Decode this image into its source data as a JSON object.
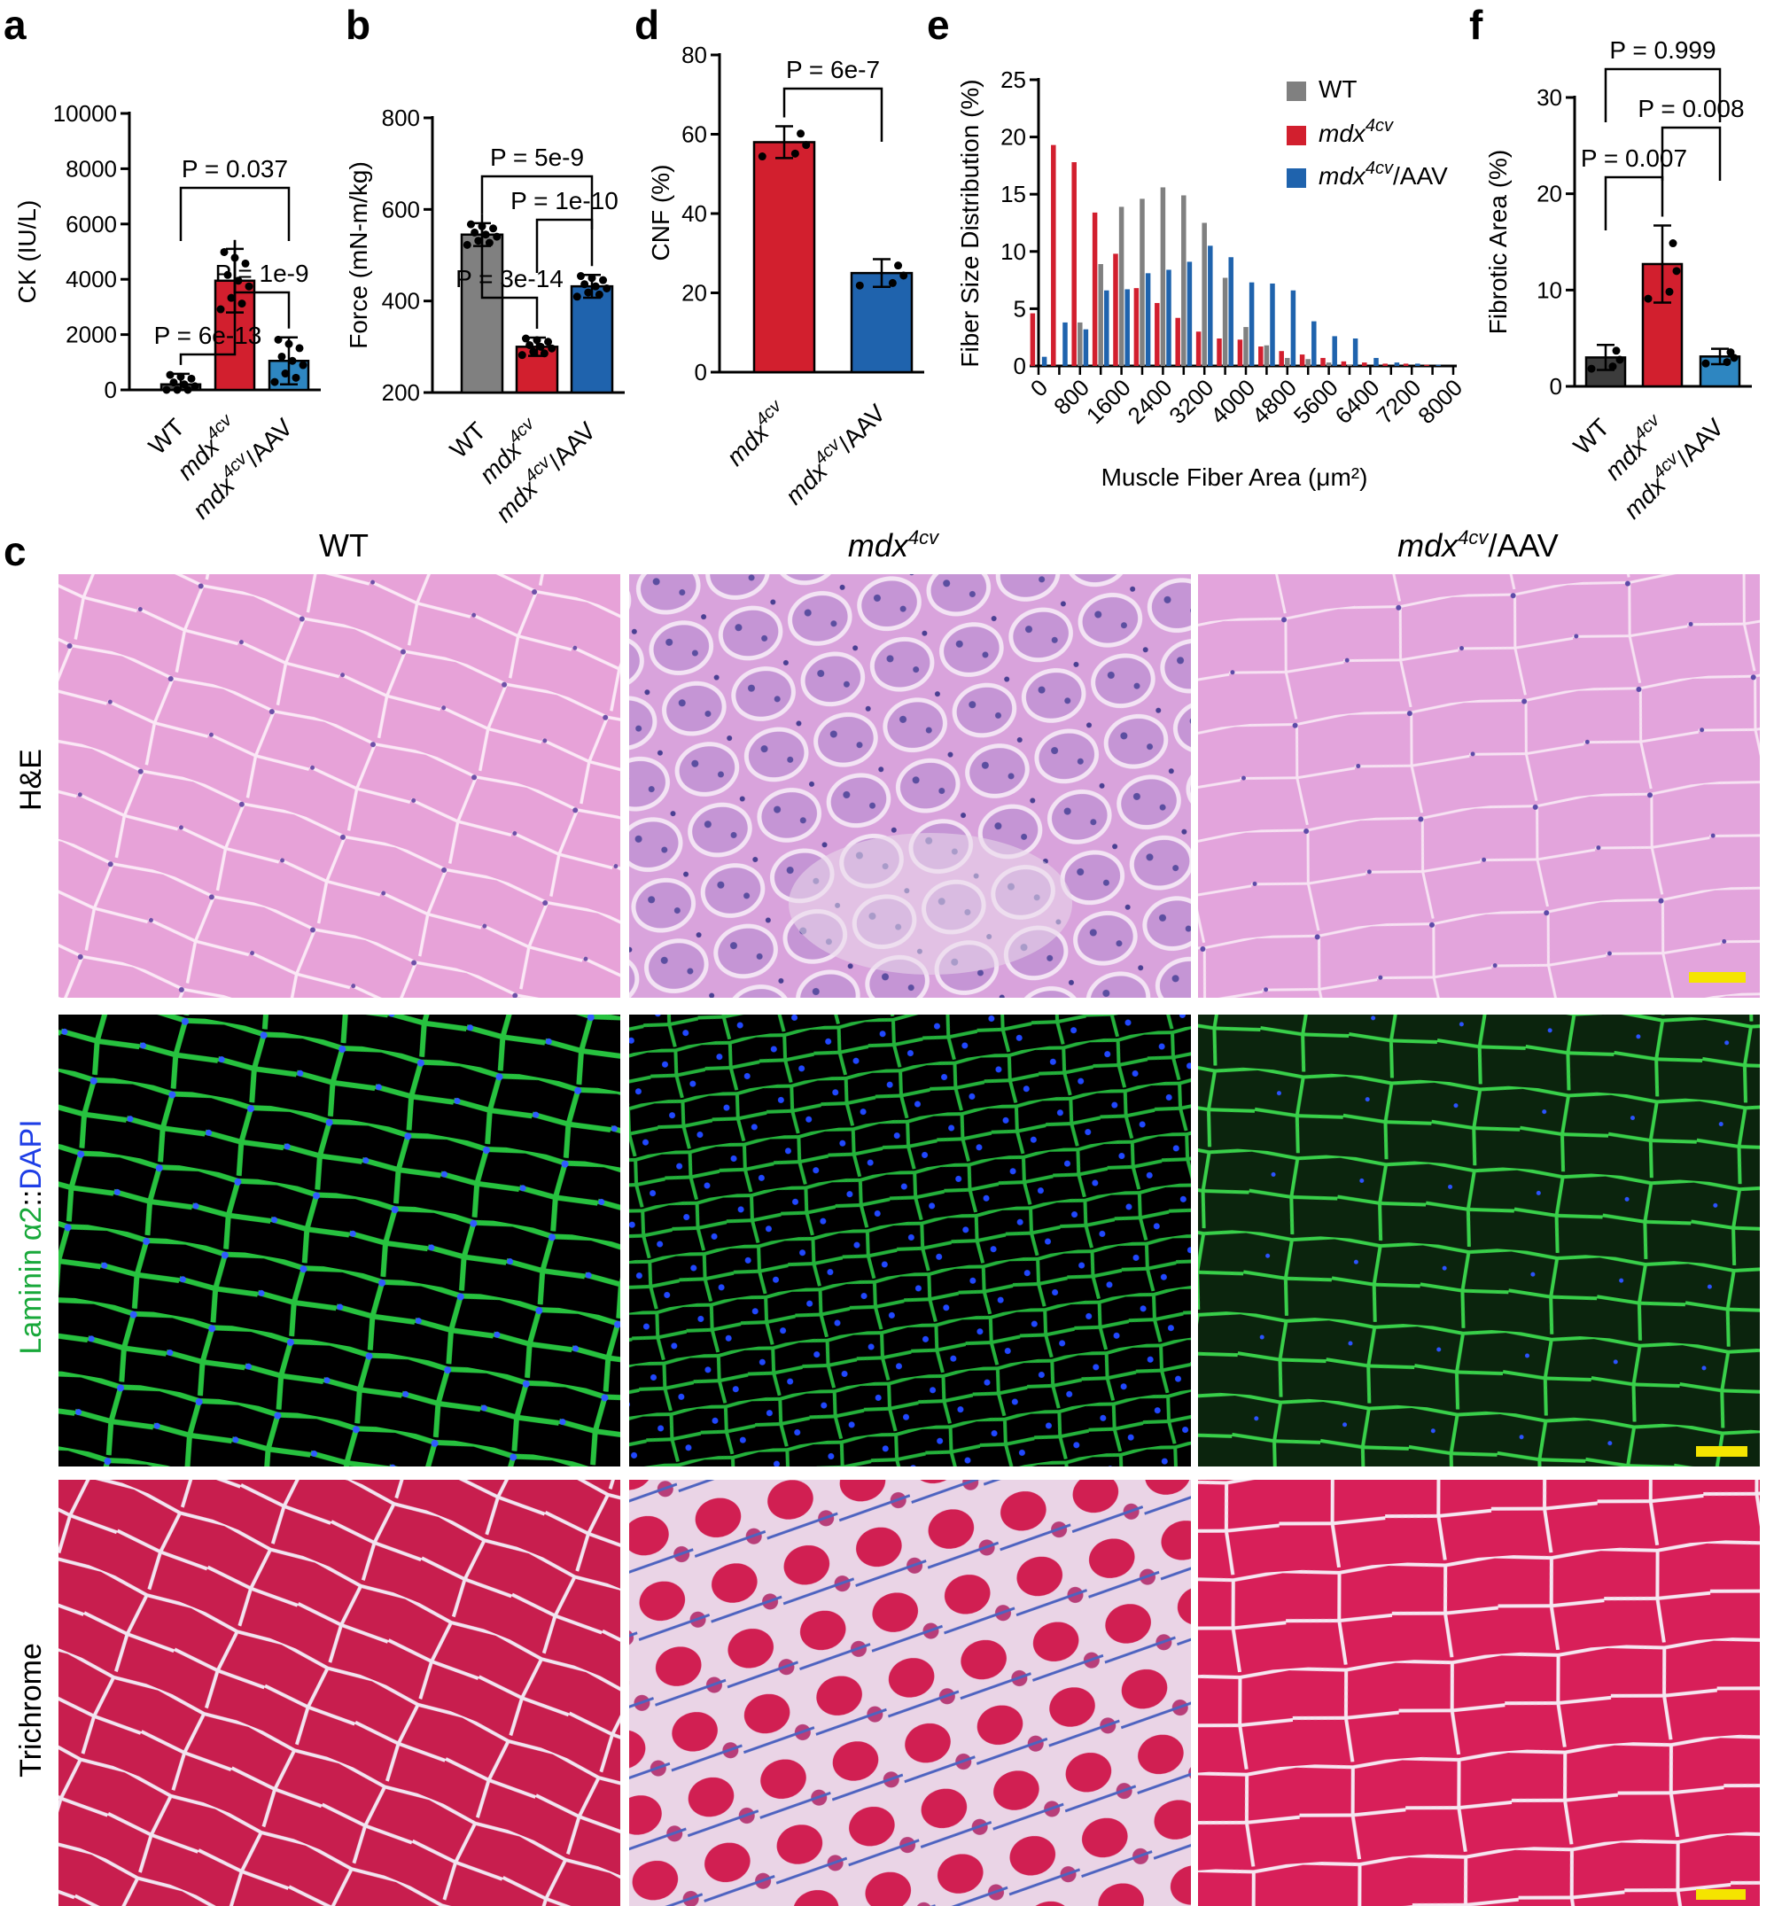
{
  "panel_letters": [
    "a",
    "b",
    "d",
    "e",
    "f",
    "c"
  ],
  "group_labels": {
    "wt": "WT",
    "mdx": "mdx",
    "sup": "4cv",
    "aav": "/AAV"
  },
  "colors": {
    "wt": "#808080",
    "wt_dark": "#4d4d4d",
    "mdx": "#d21f2e",
    "aav": "#1f63ad",
    "aav_light": "#2e86c1",
    "scalebar": "#f5e400"
  },
  "chart_data": [
    {
      "id": "a",
      "type": "bar",
      "ylabel": "CK (IU/L)",
      "ylim": [
        0,
        10000
      ],
      "yticks": [
        "0",
        "2000",
        "4000",
        "6000",
        "8000",
        "10000"
      ],
      "categories": [
        "WT",
        "mdx4cv",
        "mdx4cv/AAV"
      ],
      "values": [
        200,
        3950,
        1050
      ],
      "errors": [
        380,
        1150,
        850
      ],
      "pvalues": [
        {
          "pair": [
            0,
            1
          ],
          "label": "P = 6e-13"
        },
        {
          "pair": [
            1,
            2
          ],
          "label": "P = 1e-9"
        },
        {
          "pair": [
            0,
            2
          ],
          "label": "P = 0.037"
        }
      ]
    },
    {
      "id": "b",
      "type": "bar",
      "ylabel": "Force (mN-m/kg)",
      "ylim": [
        200,
        800
      ],
      "yticks": [
        "200",
        "400",
        "600",
        "800"
      ],
      "categories": [
        "WT",
        "mdx4cv",
        "mdx4cv/AAV"
      ],
      "values": [
        545,
        300,
        432
      ],
      "errors": [
        25,
        20,
        25
      ],
      "pvalues": [
        {
          "pair": [
            0,
            1
          ],
          "label": "P = 3e-14"
        },
        {
          "pair": [
            1,
            2
          ],
          "label": "P = 1e-10"
        },
        {
          "pair": [
            0,
            2
          ],
          "label": "P = 5e-9"
        }
      ]
    },
    {
      "id": "d",
      "type": "bar",
      "ylabel": "CNF (%)",
      "ylim": [
        0,
        80
      ],
      "yticks": [
        "0",
        "20",
        "40",
        "60",
        "80"
      ],
      "categories": [
        "mdx4cv",
        "mdx4cv/AAV"
      ],
      "values": [
        58,
        25
      ],
      "errors": [
        4,
        3.5
      ],
      "pvalues": [
        {
          "pair": [
            0,
            1
          ],
          "label": "P = 6e-7"
        }
      ]
    },
    {
      "id": "e",
      "type": "bar",
      "ylabel": "Fiber Size Distribution (%)",
      "xlabel": "Muscle Fiber Area (μm²)",
      "ylim": [
        0,
        25
      ],
      "yticks": [
        "0",
        "5",
        "10",
        "15",
        "20",
        "25"
      ],
      "xticks": [
        "0",
        "800",
        "1600",
        "2400",
        "3200",
        "4000",
        "4800",
        "5600",
        "6400",
        "7200",
        "8000"
      ],
      "x": [
        0,
        400,
        800,
        1200,
        1600,
        2000,
        2400,
        2800,
        3200,
        3600,
        4000,
        4400,
        4800,
        5200,
        5600,
        6000,
        6400,
        6800,
        7200,
        7600,
        8000
      ],
      "legend": [
        "WT",
        "mdx4cv",
        "mdx4cv/AAV"
      ],
      "series": [
        {
          "name": "WT",
          "values": [
            0,
            0,
            3.8,
            8.9,
            13.9,
            14.6,
            15.6,
            14.9,
            12.5,
            7.7,
            3.4,
            1.8,
            0.7,
            0.6,
            0.3,
            0.1,
            0,
            0,
            0,
            0,
            0
          ]
        },
        {
          "name": "mdx4cv",
          "values": [
            4.6,
            19.3,
            17.8,
            13.4,
            9.8,
            6.8,
            5.5,
            4.2,
            3.0,
            2.4,
            2.3,
            1.7,
            1.3,
            1.0,
            0.7,
            0.4,
            0.3,
            0.2,
            0.2,
            0.1,
            0
          ]
        },
        {
          "name": "mdx4cv/AAV",
          "values": [
            0.8,
            3.8,
            3.2,
            6.6,
            6.7,
            8.1,
            8.4,
            9.1,
            10.5,
            9.5,
            7.3,
            7.2,
            6.6,
            3.9,
            2.6,
            2.4,
            0.7,
            0.3,
            0.2,
            0.1,
            0
          ]
        }
      ]
    },
    {
      "id": "f",
      "type": "bar",
      "ylabel": "Fibrotic Area (%)",
      "ylim": [
        0,
        30
      ],
      "yticks": [
        "0",
        "10",
        "20",
        "30"
      ],
      "categories": [
        "WT",
        "mdx4cv",
        "mdx4cv/AAV"
      ],
      "values": [
        3.0,
        12.7,
        3.1
      ],
      "errors": [
        1.3,
        4.0,
        0.8
      ],
      "pvalues": [
        {
          "pair": [
            0,
            1
          ],
          "label": "P = 0.007"
        },
        {
          "pair": [
            1,
            2
          ],
          "label": "P = 0.008"
        },
        {
          "pair": [
            0,
            2
          ],
          "label": "P = 0.999"
        }
      ]
    }
  ],
  "micrographs": {
    "columns": [
      "WT",
      "mdx4cv",
      "mdx4cv/AAV"
    ],
    "rows": [
      {
        "label": "H&E"
      },
      {
        "label_parts": [
          "Laminin ",
          "α2",
          "::",
          "DAPI"
        ]
      },
      {
        "label": "Trichrome"
      }
    ]
  }
}
